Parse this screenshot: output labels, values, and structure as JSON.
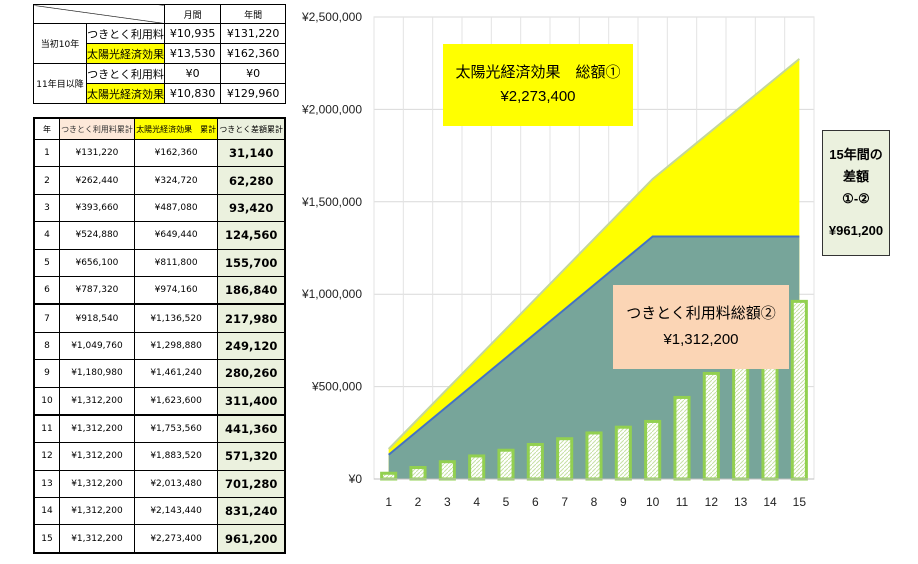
{
  "summary_table": {
    "col_monthly": "月間",
    "col_annual": "年間",
    "groups": [
      {
        "label": "当初10年",
        "rows": [
          {
            "item": "つきとく利用料",
            "monthly": "¥10,935",
            "annual": "¥131,220",
            "highlight": false
          },
          {
            "item": "太陽光経済効果",
            "monthly": "¥13,530",
            "annual": "¥162,360",
            "highlight": true
          }
        ]
      },
      {
        "label": "11年目以降",
        "rows": [
          {
            "item": "つきとく利用料",
            "monthly": "¥0",
            "annual": "¥0",
            "highlight": false
          },
          {
            "item": "太陽光経済効果",
            "monthly": "¥10,830",
            "annual": "¥129,960",
            "highlight": true
          }
        ]
      }
    ]
  },
  "cumulative_table": {
    "headers": [
      "年",
      "つきとく利用料累計",
      "太陽光経済効果　累計",
      "つきとく差額累計"
    ],
    "rows": [
      [
        "1",
        "¥131,220",
        "¥162,360",
        "31,140"
      ],
      [
        "2",
        "¥262,440",
        "¥324,720",
        "62,280"
      ],
      [
        "3",
        "¥393,660",
        "¥487,080",
        "93,420"
      ],
      [
        "4",
        "¥524,880",
        "¥649,440",
        "124,560"
      ],
      [
        "5",
        "¥656,100",
        "¥811,800",
        "155,700"
      ],
      [
        "6",
        "¥787,320",
        "¥974,160",
        "186,840"
      ],
      [
        "7",
        "¥918,540",
        "¥1,136,520",
        "217,980"
      ],
      [
        "8",
        "¥1,049,760",
        "¥1,298,880",
        "249,120"
      ],
      [
        "9",
        "¥1,180,980",
        "¥1,461,240",
        "280,260"
      ],
      [
        "10",
        "¥1,312,200",
        "¥1,623,600",
        "311,400"
      ],
      [
        "11",
        "¥1,312,200",
        "¥1,753,560",
        "441,360"
      ],
      [
        "12",
        "¥1,312,200",
        "¥1,883,520",
        "571,320"
      ],
      [
        "13",
        "¥1,312,200",
        "¥2,013,480",
        "701,280"
      ],
      [
        "14",
        "¥1,312,200",
        "¥2,143,440",
        "831,240"
      ],
      [
        "15",
        "¥1,312,200",
        "¥2,273,400",
        "961,200"
      ]
    ]
  },
  "labels": {
    "solar_title": "太陽光経済効果　総額①",
    "solar_value": "¥2,273,400",
    "tsuki_title": "つきとく利用料総額②",
    "tsuki_value": "¥1,312,200",
    "diff_line1": "15年間の",
    "diff_line2": "差額",
    "diff_line3": "①-②",
    "diff_value": "¥961,200"
  },
  "chart_data": {
    "type": "area",
    "x": [
      1,
      2,
      3,
      4,
      5,
      6,
      7,
      8,
      9,
      10,
      11,
      12,
      13,
      14,
      15
    ],
    "ylim": [
      0,
      2500000
    ],
    "yticks": [
      "¥0",
      "¥500,000",
      "¥1,000,000",
      "¥1,500,000",
      "¥2,000,000",
      "¥2,500,000"
    ],
    "ytick_values": [
      0,
      500000,
      1000000,
      1500000,
      2000000,
      2500000
    ],
    "grid": true,
    "series": [
      {
        "values": [
          162360,
          324720,
          487080,
          649440,
          811800,
          974160,
          1136520,
          1298880,
          1461240,
          1623600,
          1753560,
          1883520,
          2013480,
          2143440,
          2273400
        ],
        "color": "#ffff00",
        "kind": "area"
      },
      {
        "values": [
          131220,
          262440,
          393660,
          524880,
          656100,
          787320,
          918540,
          1049760,
          1180980,
          1312200,
          1312200,
          1312200,
          1312200,
          1312200,
          1312200
        ],
        "color": "#77a59a",
        "kind": "area"
      },
      {
        "values": [
          31140,
          62280,
          93420,
          124560,
          155700,
          186840,
          217980,
          249120,
          280260,
          311400,
          441360,
          571320,
          701280,
          831240,
          961200
        ],
        "color": "#92d050",
        "kind": "bar"
      }
    ]
  }
}
